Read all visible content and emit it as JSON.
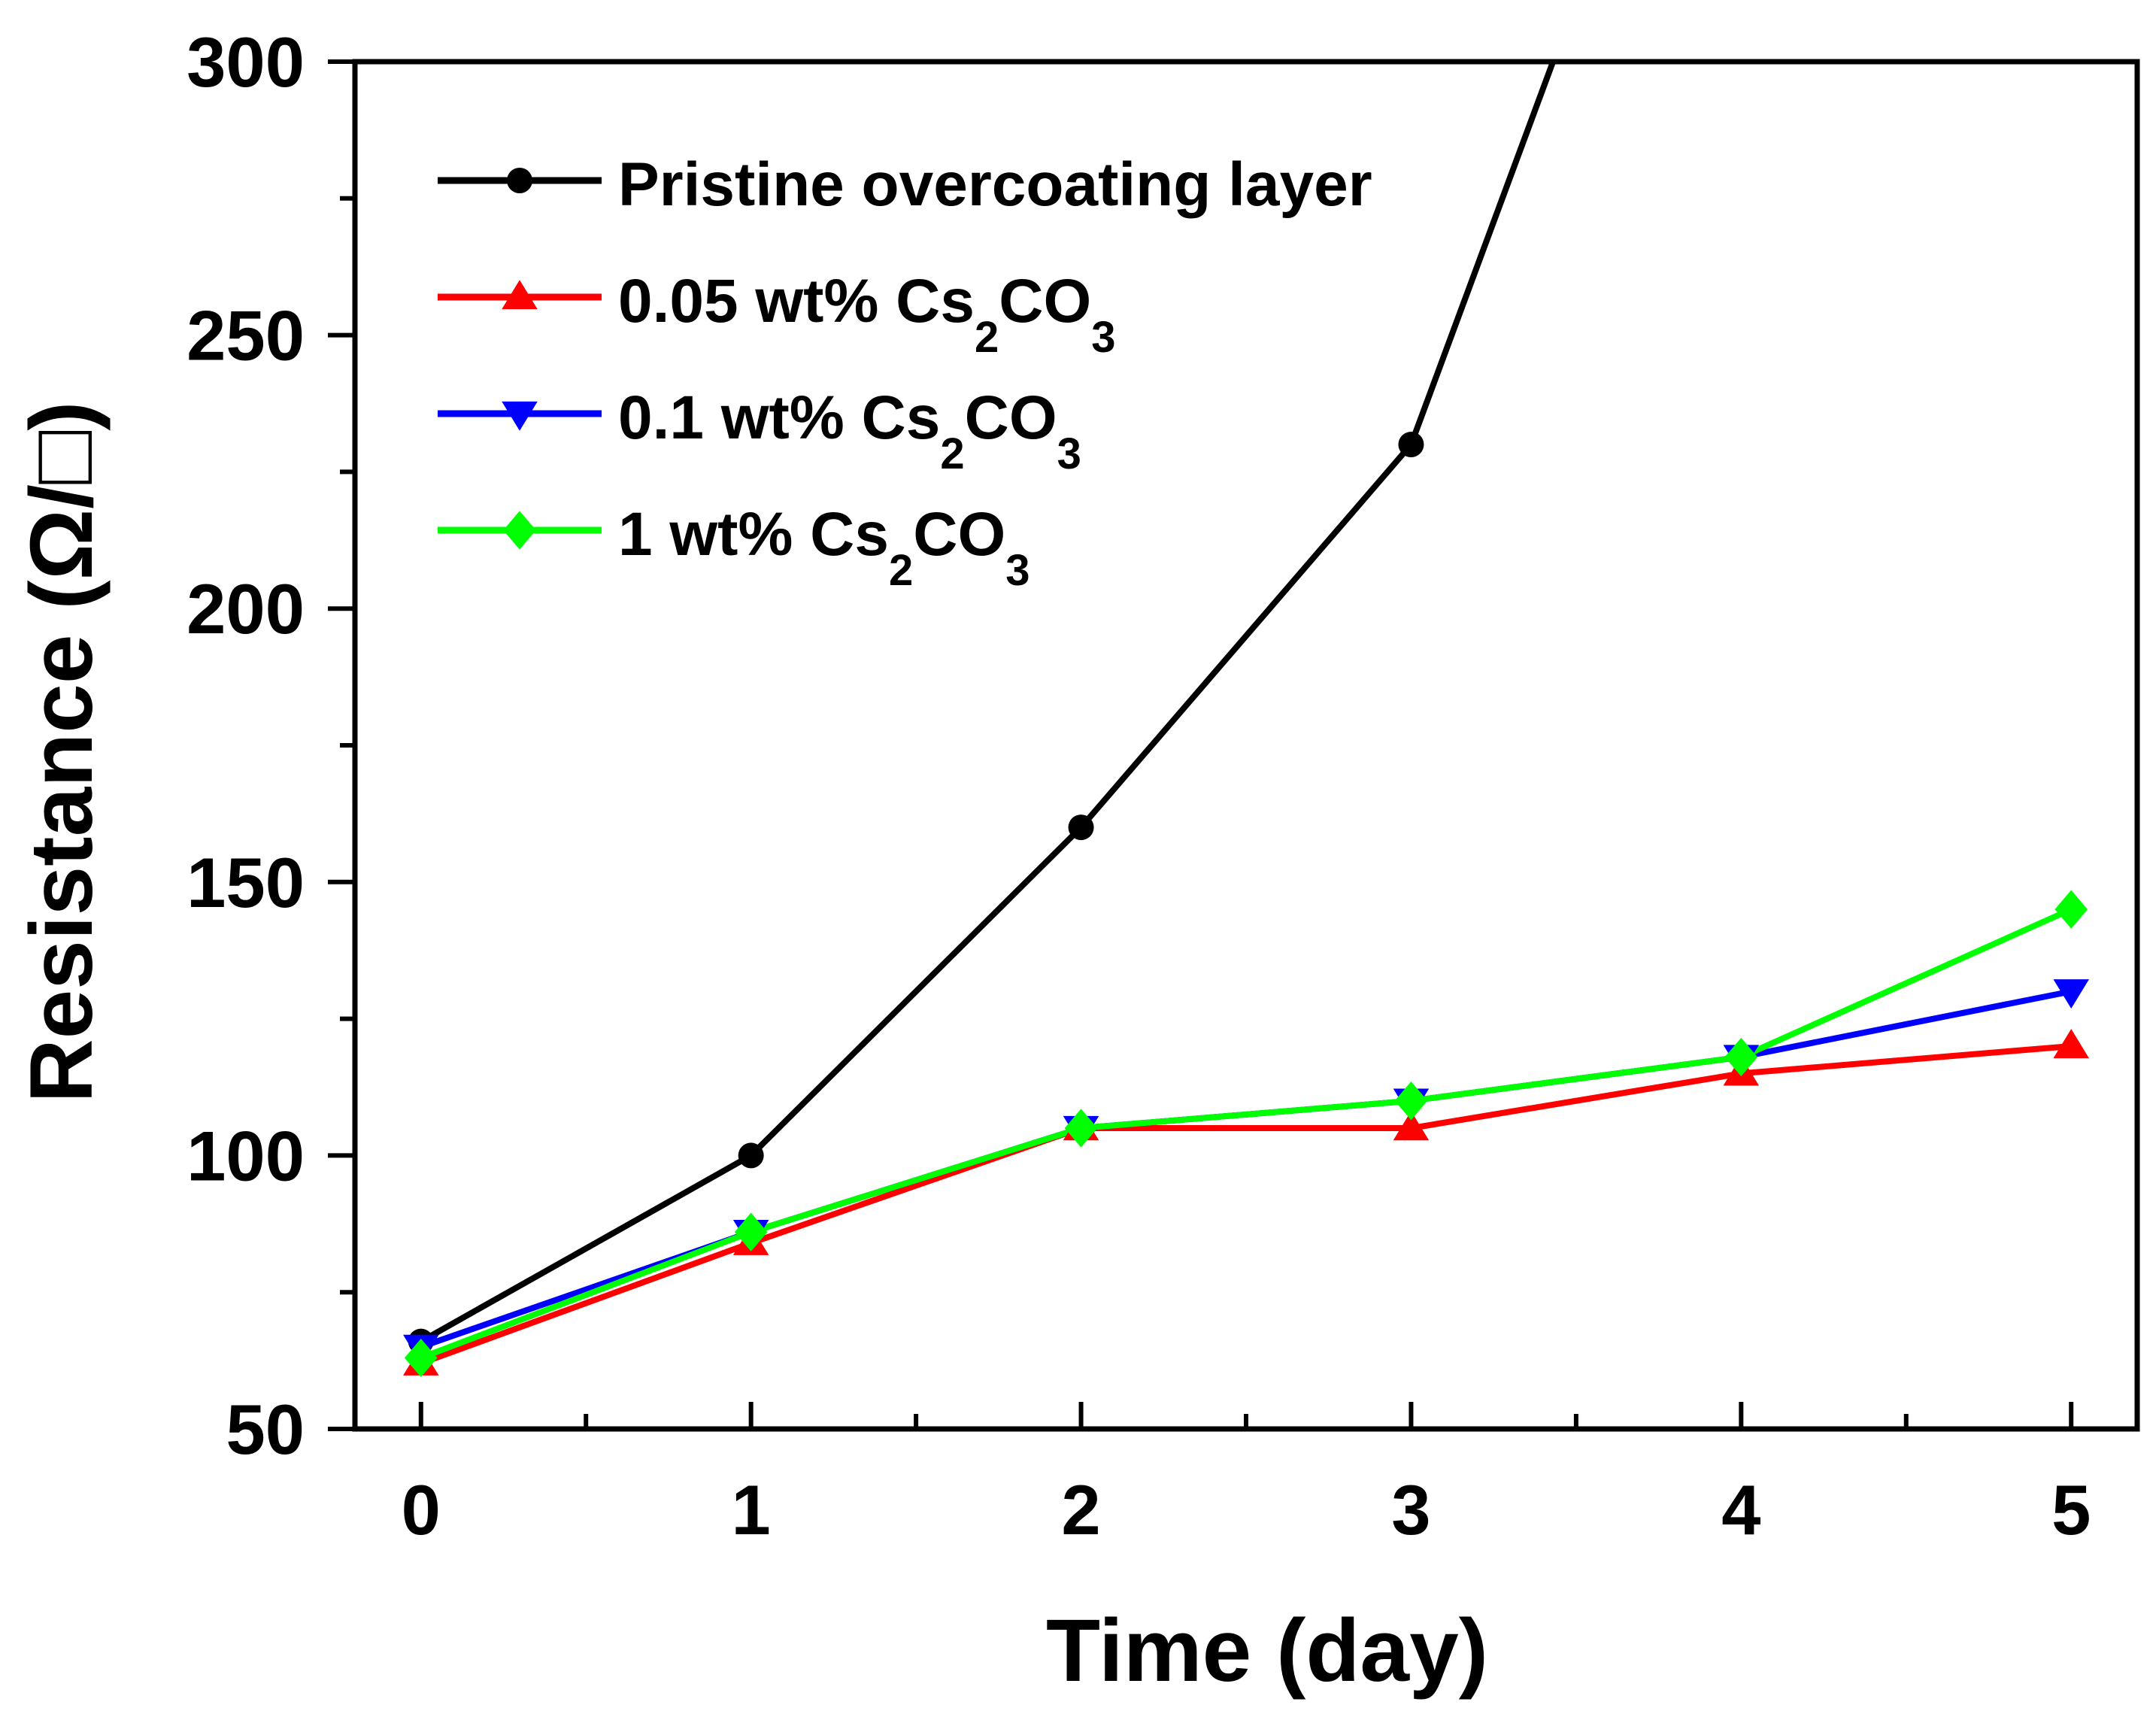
{
  "chart_data": {
    "type": "line",
    "title": "",
    "xlabel": "Time (day)",
    "ylabel": "Resistance (Ω/□)",
    "xlim": [
      -0.2,
      5.2
    ],
    "ylim": [
      50,
      300
    ],
    "x_ticks": [
      "0",
      "1",
      "2",
      "3",
      "4",
      "5"
    ],
    "y_ticks": [
      "50",
      "100",
      "150",
      "200",
      "250",
      "300"
    ],
    "grid": false,
    "legend_position": "top-left",
    "x": [
      0,
      1,
      2,
      3,
      4,
      5
    ],
    "series": [
      {
        "name": "Pristine overcoating layer",
        "legend_main": "Pristine overcoating layer",
        "legend_sub": "",
        "legend_tail": "",
        "legend_sub2": "",
        "color": "#000000",
        "marker": "circle",
        "x": [
          0,
          1,
          2,
          3,
          3.43
        ],
        "values": [
          66,
          100,
          160,
          230,
          300
        ]
      },
      {
        "name": "0.05 wt% Cs2CO3",
        "legend_main": "0.05 wt% Cs",
        "legend_sub": "2",
        "legend_tail": "CO",
        "legend_sub2": "3",
        "color": "#ff0000",
        "marker": "triangle-up",
        "x": [
          0,
          1,
          2,
          3,
          4,
          5
        ],
        "values": [
          62,
          84,
          105,
          105,
          115,
          120
        ]
      },
      {
        "name": "0.1 wt% Cs2CO3",
        "legend_main": "0.1 wt% Cs",
        "legend_sub": "2",
        "legend_tail": "CO",
        "legend_sub2": "3",
        "color": "#0000ff",
        "marker": "triangle-down",
        "x": [
          0,
          1,
          2,
          3,
          4,
          5
        ],
        "values": [
          65,
          86,
          105,
          110,
          118,
          130
        ]
      },
      {
        "name": "1 wt% Cs2CO3",
        "legend_main": "1 wt% Cs",
        "legend_sub": "2",
        "legend_tail": "CO",
        "legend_sub2": "3",
        "color": "#00ff00",
        "marker": "diamond",
        "x": [
          0,
          1,
          2,
          3,
          4,
          5
        ],
        "values": [
          63,
          86,
          105,
          110,
          118,
          145
        ]
      }
    ]
  }
}
